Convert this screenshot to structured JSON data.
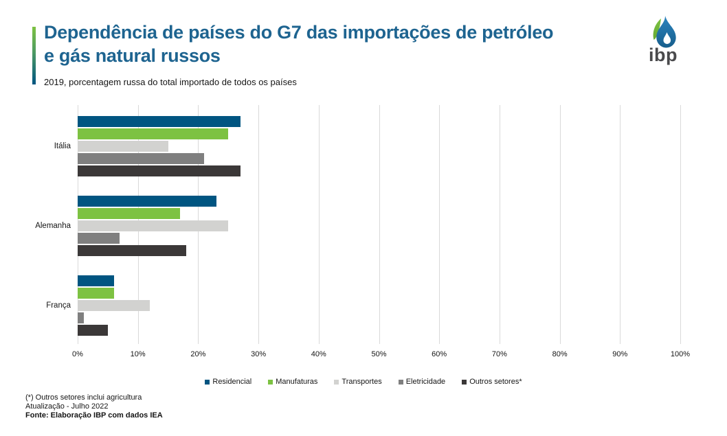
{
  "header": {
    "title_line1": "Dependência de países do G7 das importações de petróleo",
    "title_line2": "e gás natural russos",
    "subtitle": "2019, porcentagem russa do total importado de todos os países"
  },
  "logo": {
    "text": "ibp"
  },
  "chart_data": {
    "type": "bar",
    "orientation": "horizontal",
    "title": "Dependência de países do G7 das importações de petróleo e gás natural russos",
    "subtitle": "2019, porcentagem russa do total importado de todos os países",
    "categories": [
      "Itália",
      "Alemanha",
      "França"
    ],
    "series": [
      {
        "name": "Residencial",
        "color": "#005581",
        "values": [
          27,
          23,
          6
        ]
      },
      {
        "name": "Manufaturas",
        "color": "#7DC242",
        "values": [
          25,
          17,
          6
        ]
      },
      {
        "name": "Transportes",
        "color": "#D2D2D0",
        "values": [
          15,
          25,
          12
        ]
      },
      {
        "name": "Eletricidade",
        "color": "#7F7F7F",
        "values": [
          21,
          7,
          1
        ]
      },
      {
        "name": "Outros setores*",
        "color": "#3B3838",
        "values": [
          27,
          18,
          5
        ]
      }
    ],
    "xlim": [
      0,
      100
    ],
    "x_ticks": [
      "0%",
      "10%",
      "20%",
      "30%",
      "40%",
      "50%",
      "60%",
      "70%",
      "80%",
      "90%",
      "100%"
    ],
    "unit": "%",
    "grid": true,
    "legend_position": "bottom"
  },
  "footnotes": {
    "line1": "(*) Outros setores inclui agricultura",
    "line2": "Atualização - Julho 2022",
    "line3": "Fonte: Elaboração IBP com dados IEA"
  },
  "colors": {
    "title_blue": "#1E6490",
    "accent_gradient_top": "#7DC242",
    "accent_gradient_bottom": "#005581",
    "gridline": "#D9D9D9",
    "logo_text": "#4A4A4C"
  }
}
